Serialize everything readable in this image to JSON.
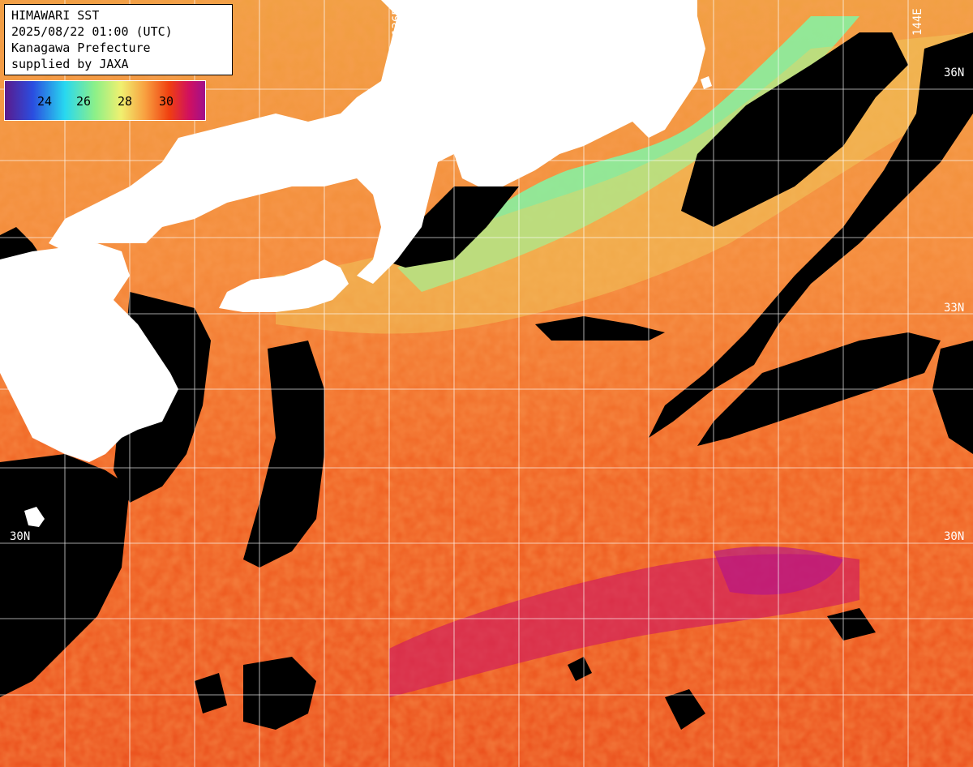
{
  "title": {
    "line1": "HIMAWARI SST",
    "line2": "2025/08/22 01:00 (UTC)",
    "line3": "Kanagawa Prefecture",
    "line4": "supplied by JAXA"
  },
  "colorbar": {
    "ticks": [
      "24",
      "26",
      "28",
      "30"
    ],
    "colors": [
      "#5a1a8c",
      "#2a4ee0",
      "#28d8f0",
      "#8cf088",
      "#f0f070",
      "#f8a040",
      "#f04010",
      "#d01060",
      "#a0108c"
    ]
  },
  "grid_labels": {
    "lat_36": "36N",
    "lat_33": "33N",
    "lat_30_left": "30N",
    "lat_30_right": "30N",
    "lon_136": "136E",
    "lon_144": "144E"
  },
  "colors": {
    "land": "#ffffff",
    "cloud_mask": "#000000",
    "grid": "#ffffff",
    "sst_warm": "#f06018",
    "sst_hot": "#d01a60",
    "sst_cool": "#88f0a0"
  }
}
